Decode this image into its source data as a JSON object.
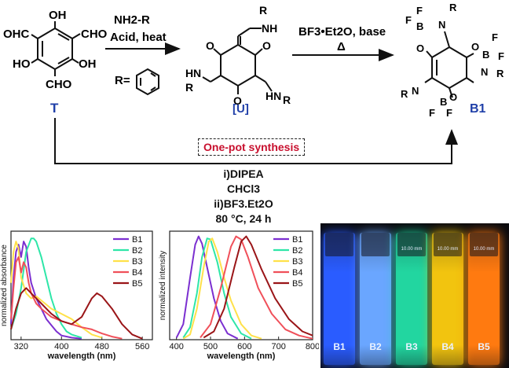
{
  "scheme": {
    "compound_T_label": "T",
    "intermediate_label": "[U]",
    "product_label": "B1",
    "step1_line1": "NH2-R",
    "step1_line2": "Acid, heat",
    "r_group_text": "R=",
    "step2_line1": "BF3•Et2O, base",
    "step2_line2": "Δ",
    "one_pot_text": "One-pot synthesis",
    "conditions": [
      "i)DIPEA",
      "CHCl3",
      "ii)BF3.Et2O",
      "80 °C, 24 h"
    ],
    "atoms": {
      "oh": "OH",
      "ohc": "OHC",
      "cho": "CHO",
      "ho": "HO",
      "nh": "NH",
      "hn": "HN",
      "h": "H",
      "n": "N",
      "r": "R",
      "o": "O",
      "b": "B",
      "f": "F"
    }
  },
  "chart_data": [
    {
      "type": "line",
      "xlabel": "wavelength (nm)",
      "ylabel": "normalized absorbance",
      "xlim": [
        300,
        580
      ],
      "ylim": [
        0,
        1.05
      ],
      "xticks": [
        320,
        400,
        480,
        560
      ],
      "series": [
        {
          "name": "B1",
          "color": "#7b2fd0",
          "x": [
            300,
            305,
            310,
            315,
            320,
            325,
            330,
            335,
            340,
            350,
            360,
            370,
            380,
            390,
            400,
            420,
            440
          ],
          "y": [
            0.15,
            0.6,
            0.85,
            0.92,
            0.8,
            0.95,
            0.9,
            0.7,
            0.55,
            0.4,
            0.3,
            0.2,
            0.14,
            0.08,
            0.04,
            0.02,
            0.01
          ]
        },
        {
          "name": "B2",
          "color": "#2ee6a8",
          "x": [
            300,
            310,
            320,
            330,
            340,
            345,
            350,
            360,
            370,
            380,
            390,
            400,
            410,
            420,
            440
          ],
          "y": [
            0.1,
            0.25,
            0.5,
            0.85,
            0.98,
            0.98,
            0.95,
            0.8,
            0.6,
            0.4,
            0.25,
            0.15,
            0.08,
            0.05,
            0.02
          ]
        },
        {
          "name": "B3",
          "color": "#ffe14a",
          "x": [
            300,
            305,
            310,
            315,
            320,
            330,
            340,
            350,
            360,
            380,
            400,
            420,
            440,
            460,
            480
          ],
          "y": [
            0.55,
            0.85,
            0.95,
            0.88,
            0.6,
            0.45,
            0.4,
            0.42,
            0.38,
            0.3,
            0.25,
            0.2,
            0.12,
            0.05,
            0.02
          ]
        },
        {
          "name": "B4",
          "color": "#f0505a",
          "x": [
            300,
            305,
            310,
            315,
            320,
            325,
            330,
            335,
            340,
            350,
            360,
            380,
            400,
            420,
            440,
            460,
            480,
            500,
            520
          ],
          "y": [
            0.2,
            0.5,
            0.75,
            0.8,
            0.65,
            0.75,
            0.7,
            0.55,
            0.45,
            0.35,
            0.3,
            0.22,
            0.18,
            0.15,
            0.12,
            0.1,
            0.06,
            0.03,
            0.01
          ]
        },
        {
          "name": "B5",
          "color": "#9a1518",
          "x": [
            300,
            310,
            320,
            330,
            340,
            360,
            380,
            400,
            420,
            440,
            460,
            470,
            480,
            500,
            520,
            540,
            560
          ],
          "y": [
            0.1,
            0.3,
            0.45,
            0.5,
            0.45,
            0.35,
            0.25,
            0.18,
            0.15,
            0.22,
            0.4,
            0.45,
            0.42,
            0.3,
            0.15,
            0.05,
            0.01
          ]
        }
      ]
    },
    {
      "type": "line",
      "xlabel": "wavelength (nm)",
      "ylabel": "normalized intensity",
      "xlim": [
        380,
        800
      ],
      "ylim": [
        0,
        1.05
      ],
      "xticks": [
        400,
        500,
        600,
        700,
        800
      ],
      "series": [
        {
          "name": "B1",
          "color": "#7b2fd0",
          "x": [
            400,
            420,
            440,
            455,
            465,
            475,
            490,
            510,
            530,
            550,
            580
          ],
          "y": [
            0.02,
            0.15,
            0.6,
            0.92,
            1.0,
            0.93,
            0.7,
            0.4,
            0.18,
            0.06,
            0.01
          ]
        },
        {
          "name": "B2",
          "color": "#2ee6a8",
          "x": [
            420,
            440,
            460,
            475,
            490,
            500,
            520,
            540,
            560,
            590,
            620
          ],
          "y": [
            0.02,
            0.12,
            0.45,
            0.8,
            0.98,
            0.97,
            0.75,
            0.45,
            0.22,
            0.06,
            0.01
          ]
        },
        {
          "name": "B3",
          "color": "#ffe14a",
          "x": [
            420,
            440,
            460,
            480,
            495,
            505,
            520,
            540,
            560,
            590,
            620,
            650
          ],
          "y": [
            0.01,
            0.05,
            0.3,
            0.7,
            0.95,
            0.98,
            0.85,
            0.6,
            0.38,
            0.15,
            0.04,
            0.01
          ]
        },
        {
          "name": "B4",
          "color": "#f0505a",
          "x": [
            470,
            500,
            530,
            560,
            575,
            590,
            610,
            640,
            680,
            720,
            760,
            800
          ],
          "y": [
            0.02,
            0.15,
            0.5,
            0.9,
            1.0,
            0.97,
            0.8,
            0.5,
            0.25,
            0.1,
            0.04,
            0.01
          ]
        },
        {
          "name": "B5",
          "color": "#9a1518",
          "x": [
            480,
            510,
            540,
            570,
            590,
            605,
            620,
            650,
            690,
            730,
            770,
            800
          ],
          "y": [
            0.02,
            0.08,
            0.3,
            0.7,
            0.95,
            1.0,
            0.92,
            0.68,
            0.4,
            0.2,
            0.08,
            0.04
          ]
        }
      ]
    }
  ],
  "photo": {
    "cuvettes": [
      {
        "label": "B1",
        "color": "#2a5cff"
      },
      {
        "label": "B2",
        "color": "#6aa6ff"
      },
      {
        "label": "B3",
        "color": "#22d6a0"
      },
      {
        "label": "B4",
        "color": "#f2c40f"
      },
      {
        "label": "B5",
        "color": "#ff7a10"
      }
    ],
    "cap_texts": [
      "10.00 mm",
      "10.00 mm",
      "10.00 mm"
    ]
  }
}
